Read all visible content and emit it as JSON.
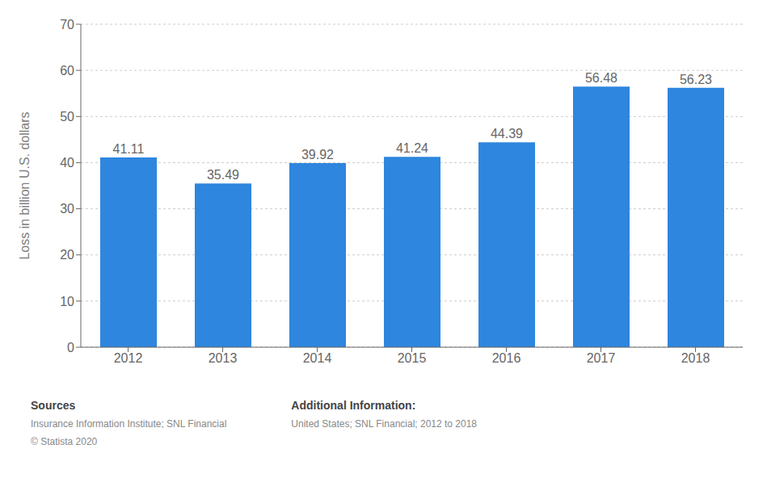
{
  "chart_data": {
    "type": "bar",
    "categories": [
      "2012",
      "2013",
      "2014",
      "2015",
      "2016",
      "2017",
      "2018"
    ],
    "values": [
      41.11,
      35.49,
      39.92,
      41.24,
      44.39,
      56.48,
      56.23
    ],
    "color": "#2e86de",
    "y_label": "Loss in billion U.S. dollars",
    "ylim": [
      0,
      70
    ],
    "yticks": [
      0,
      10,
      20,
      30,
      40,
      50,
      60,
      70
    ],
    "grid": true,
    "data_labels": true,
    "annotations": [
      "Sources",
      "Insurance Information Institute; SNL Financial",
      "© Statista 2020",
      "Additional Information:",
      "United States; SNL Financial; 2012 to 2018"
    ]
  }
}
